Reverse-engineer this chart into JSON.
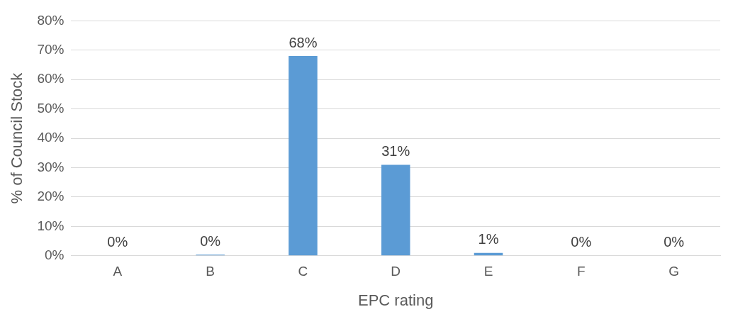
{
  "chart_data": {
    "type": "bar",
    "xlabel": "EPC rating",
    "ylabel": "% of Council Stock",
    "categories": [
      "A",
      "B",
      "C",
      "D",
      "E",
      "F",
      "G"
    ],
    "values": [
      0,
      0.4,
      68,
      31,
      1,
      0,
      0
    ],
    "value_labels": [
      "0%",
      "0%",
      "68%",
      "31%",
      "1%",
      "0%",
      "0%"
    ],
    "color": "#5b9bd5",
    "ylim": [
      0,
      80
    ],
    "yticks": [
      {
        "value": 0,
        "label": "0%"
      },
      {
        "value": 10,
        "label": "10%"
      },
      {
        "value": 20,
        "label": "20%"
      },
      {
        "value": 30,
        "label": "30%"
      },
      {
        "value": 40,
        "label": "40%"
      },
      {
        "value": 50,
        "label": "50%"
      },
      {
        "value": 60,
        "label": "60%"
      },
      {
        "value": 70,
        "label": "70%"
      },
      {
        "value": 80,
        "label": "80%"
      }
    ],
    "grid": "y"
  }
}
